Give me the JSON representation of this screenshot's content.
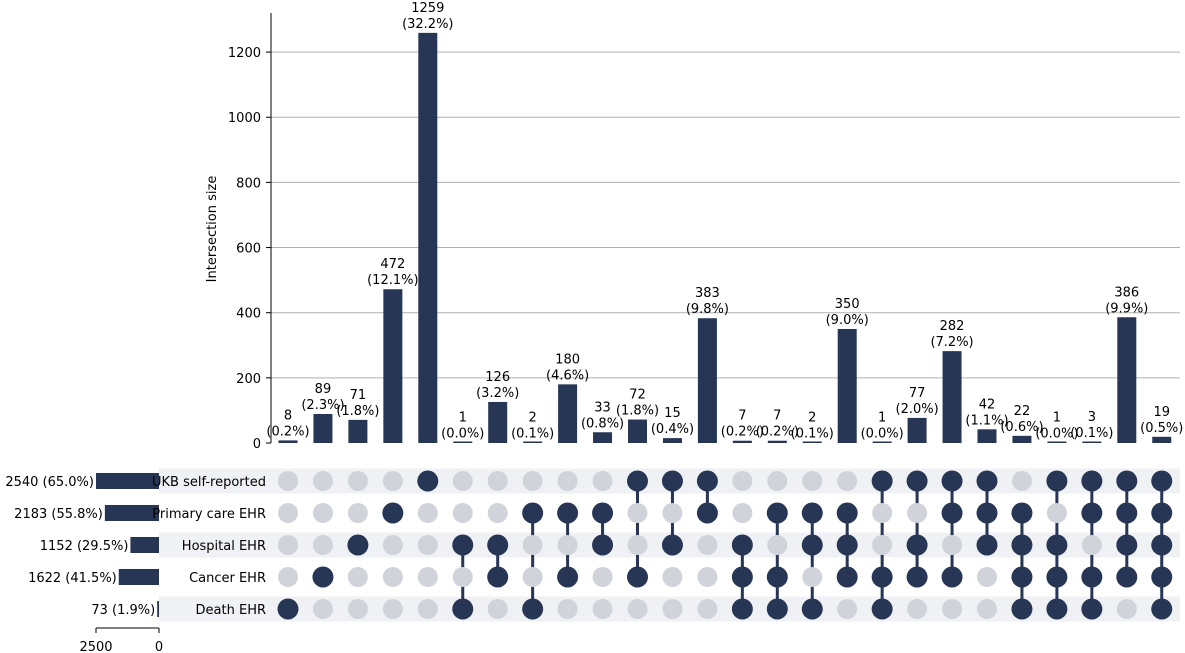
{
  "chart_data": {
    "type": "upset",
    "ylabel": "Intersection size",
    "ylim": [
      0,
      1320
    ],
    "yticks": [
      0,
      200,
      400,
      600,
      800,
      1000,
      1200
    ],
    "grid": true,
    "colors": {
      "bar": "#263654",
      "dot_on": "#263654",
      "dot_off": "#d0d3da",
      "stripe": "#f0f1f4",
      "grid": "#b0b0b0"
    },
    "sets": [
      {
        "name": "UKB self-reported",
        "size": 2540,
        "label": "2540 (65.0%)"
      },
      {
        "name": "Primary care EHR",
        "size": 2183,
        "label": "2183 (55.8%)"
      },
      {
        "name": "Hospital EHR",
        "size": 1152,
        "label": "1152 (29.5%)"
      },
      {
        "name": "Cancer EHR",
        "size": 1622,
        "label": "1622 (41.5%)"
      },
      {
        "name": "Death EHR",
        "size": 73,
        "label": "73 (1.9%)"
      }
    ],
    "set_size_axis": {
      "ticks": [
        2500,
        0
      ],
      "max": 2540
    },
    "intersections": [
      {
        "value": 8,
        "pct": "(0.2%)",
        "members": [
          4
        ]
      },
      {
        "value": 89,
        "pct": "(2.3%)",
        "members": [
          3
        ]
      },
      {
        "value": 71,
        "pct": "(1.8%)",
        "members": [
          2
        ]
      },
      {
        "value": 472,
        "pct": "(12.1%)",
        "members": [
          1
        ]
      },
      {
        "value": 1259,
        "pct": "(32.2%)",
        "members": [
          0
        ]
      },
      {
        "value": 1,
        "pct": "(0.0%)",
        "members": [
          2,
          4
        ]
      },
      {
        "value": 126,
        "pct": "(3.2%)",
        "members": [
          2,
          3
        ]
      },
      {
        "value": 2,
        "pct": "(0.1%)",
        "members": [
          1,
          4
        ]
      },
      {
        "value": 180,
        "pct": "(4.6%)",
        "members": [
          1,
          3
        ]
      },
      {
        "value": 33,
        "pct": "(0.8%)",
        "members": [
          1,
          2
        ]
      },
      {
        "value": 72,
        "pct": "(1.8%)",
        "members": [
          0,
          3
        ]
      },
      {
        "value": 15,
        "pct": "(0.4%)",
        "members": [
          0,
          2
        ]
      },
      {
        "value": 383,
        "pct": "(9.8%)",
        "members": [
          0,
          1
        ]
      },
      {
        "value": 7,
        "pct": "(0.2%)",
        "members": [
          2,
          3,
          4
        ]
      },
      {
        "value": 7,
        "pct": "(0.2%)",
        "members": [
          1,
          3,
          4
        ]
      },
      {
        "value": 2,
        "pct": "(0.1%)",
        "members": [
          1,
          2,
          4
        ]
      },
      {
        "value": 350,
        "pct": "(9.0%)",
        "members": [
          1,
          2,
          3
        ]
      },
      {
        "value": 1,
        "pct": "(0.0%)",
        "members": [
          0,
          3,
          4
        ]
      },
      {
        "value": 77,
        "pct": "(2.0%)",
        "members": [
          0,
          2,
          3
        ]
      },
      {
        "value": 282,
        "pct": "(7.2%)",
        "members": [
          0,
          1,
          3
        ]
      },
      {
        "value": 42,
        "pct": "(1.1%)",
        "members": [
          0,
          1,
          2
        ]
      },
      {
        "value": 22,
        "pct": "(0.6%)",
        "members": [
          1,
          2,
          3,
          4
        ]
      },
      {
        "value": 1,
        "pct": "(0.0%)",
        "members": [
          0,
          2,
          3,
          4
        ]
      },
      {
        "value": 3,
        "pct": "(0.1%)",
        "members": [
          0,
          1,
          3,
          4
        ]
      },
      {
        "value": 386,
        "pct": "(9.9%)",
        "members": [
          0,
          1,
          2,
          3
        ]
      },
      {
        "value": 19,
        "pct": "(0.5%)",
        "members": [
          0,
          1,
          2,
          3,
          4
        ]
      }
    ]
  }
}
